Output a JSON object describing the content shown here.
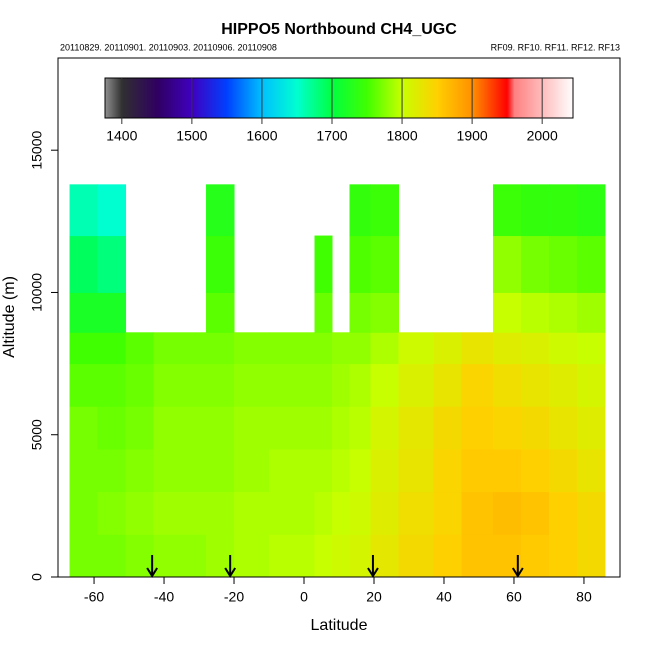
{
  "chart_data": {
    "type": "heatmap",
    "title": "HIPPO5 Northbound CH4_UGC",
    "subtitle_left": "20110829. 20110901. 20110903. 20110906. 20110908",
    "subtitle_right": "RF09. RF10. RF11. RF12. RF13",
    "x_label": "Latitude",
    "y_label": "Altitude (m)",
    "xlim": [
      -70.3,
      90.3
    ],
    "xticks": [
      -60,
      -40,
      -20,
      0,
      20,
      40,
      60,
      80
    ],
    "ylim": [
      0,
      18240
    ],
    "yticks": [
      0,
      5000,
      10000,
      15000
    ],
    "x_edges": [
      -67,
      -59,
      -51,
      -43,
      -28,
      -20,
      -10,
      3,
      8,
      13,
      19,
      27,
      37,
      45,
      54,
      62,
      70,
      78,
      86
    ],
    "y_edges": [
      0,
      1500,
      3000,
      4500,
      6000,
      7500,
      8600,
      10000,
      12000,
      13800
    ],
    "values": [
      [
        1770,
        1770,
        1770,
        1770,
        1760,
        1750,
        1720,
        1690,
        1660
      ],
      [
        1770,
        1775,
        1770,
        1765,
        1760,
        1750,
        1720,
        1680,
        1650
      ],
      [
        1775,
        1780,
        1775,
        1770,
        1765,
        1760,
        null,
        null,
        null
      ],
      [
        1780,
        1785,
        1780,
        1780,
        1775,
        1770,
        null,
        null,
        null
      ],
      [
        1785,
        1785,
        1780,
        1780,
        1775,
        1770,
        1760,
        1745,
        1730
      ],
      [
        1790,
        1790,
        1785,
        1785,
        1780,
        1775,
        null,
        null,
        null
      ],
      [
        1795,
        1790,
        1790,
        1785,
        1780,
        1775,
        null,
        null,
        null
      ],
      [
        1800,
        1795,
        1790,
        1785,
        1780,
        1775,
        1765,
        1750,
        null
      ],
      [
        1805,
        1800,
        1795,
        1790,
        1785,
        1780,
        null,
        null,
        null
      ],
      [
        1810,
        1805,
        1800,
        1795,
        1790,
        1780,
        1770,
        1755,
        1740
      ],
      [
        1825,
        1820,
        1815,
        1810,
        1800,
        1790,
        1775,
        1760,
        1745
      ],
      [
        1840,
        1835,
        1830,
        1825,
        1815,
        1805,
        null,
        null,
        null
      ],
      [
        1850,
        1845,
        1845,
        1840,
        1830,
        1815,
        null,
        null,
        null
      ],
      [
        1860,
        1860,
        1855,
        1850,
        1845,
        1830,
        null,
        null,
        null
      ],
      [
        1860,
        1865,
        1855,
        1845,
        1835,
        1820,
        1800,
        1780,
        1745
      ],
      [
        1855,
        1860,
        1850,
        1840,
        1830,
        1815,
        1795,
        1770,
        1740
      ],
      [
        1850,
        1850,
        1840,
        1830,
        1820,
        1805,
        1790,
        1765,
        1740
      ],
      [
        1840,
        1840,
        1830,
        1820,
        1810,
        1800,
        1785,
        1760,
        1735
      ]
    ],
    "arrows_x": [
      -43.4,
      -21.1,
      19.7,
      61.1
    ],
    "colorbar": {
      "lim": [
        1376,
        2044
      ],
      "ticks": [
        1400,
        1500,
        1600,
        1700,
        1800,
        1900,
        2000
      ],
      "colorscale": [
        {
          "value": 1376,
          "color": "#909090"
        },
        {
          "value": 1400,
          "color": "#303030"
        },
        {
          "value": 1450,
          "color": "#300060"
        },
        {
          "value": 1500,
          "color": "#4000c0"
        },
        {
          "value": 1550,
          "color": "#0040ff"
        },
        {
          "value": 1600,
          "color": "#00c0ff"
        },
        {
          "value": 1650,
          "color": "#00ffd0"
        },
        {
          "value": 1700,
          "color": "#00ff40"
        },
        {
          "value": 1750,
          "color": "#40ff00"
        },
        {
          "value": 1800,
          "color": "#c8ff00"
        },
        {
          "value": 1850,
          "color": "#ffd000"
        },
        {
          "value": 1900,
          "color": "#ff9000"
        },
        {
          "value": 1950,
          "color": "#ff0000"
        },
        {
          "value": 1960,
          "color": "#ff8080"
        },
        {
          "value": 2044,
          "color": "#ffffff"
        }
      ]
    }
  }
}
